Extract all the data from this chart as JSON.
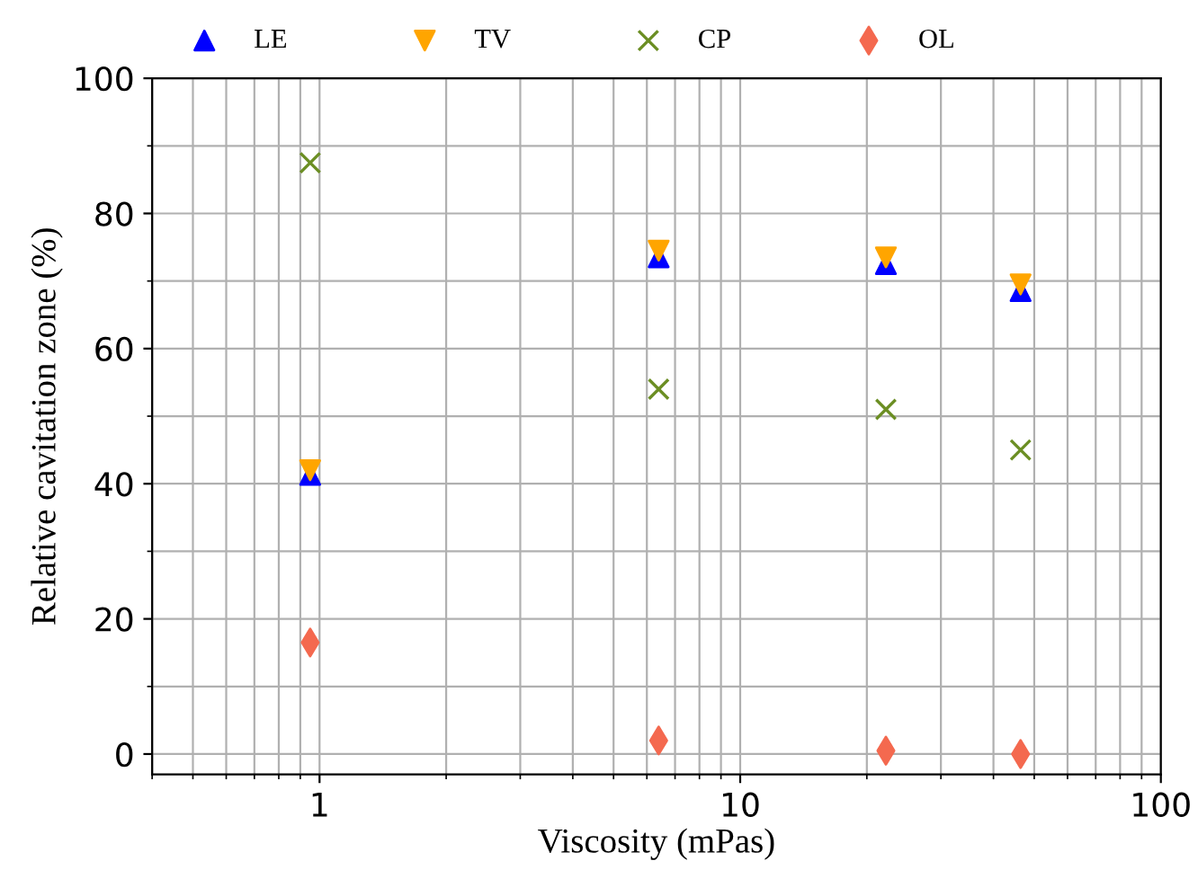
{
  "chart_data": {
    "type": "scatter",
    "xlabel": "Viscosity (mPas)",
    "ylabel": "Relative cavitation zone (%)",
    "log": "x",
    "xlim": [
      0.4,
      100
    ],
    "xticks": [
      1,
      10,
      100
    ],
    "ylim": [
      -3,
      100
    ],
    "yticks": [
      0,
      20,
      40,
      60,
      80,
      100
    ],
    "grid": true,
    "legend": "top",
    "x": [
      0.95,
      6.4,
      22.2,
      46.4
    ],
    "series": [
      {
        "name": "LE",
        "color": "#0000ff",
        "marker": "triangle",
        "values": [
          41.3,
          73.5,
          72.5,
          68.5
        ]
      },
      {
        "name": "TV",
        "color": "#ffa500",
        "marker": "triangle_down",
        "values": [
          42,
          74.5,
          73.5,
          69.5
        ]
      },
      {
        "name": "CP",
        "color": "#6b8e23",
        "marker": "cross",
        "values": [
          87.5,
          54,
          51,
          45
        ]
      },
      {
        "name": "OL",
        "color": "#f4694f",
        "marker": "diamond",
        "values": [
          16.5,
          2,
          0.5,
          0
        ]
      }
    ]
  }
}
